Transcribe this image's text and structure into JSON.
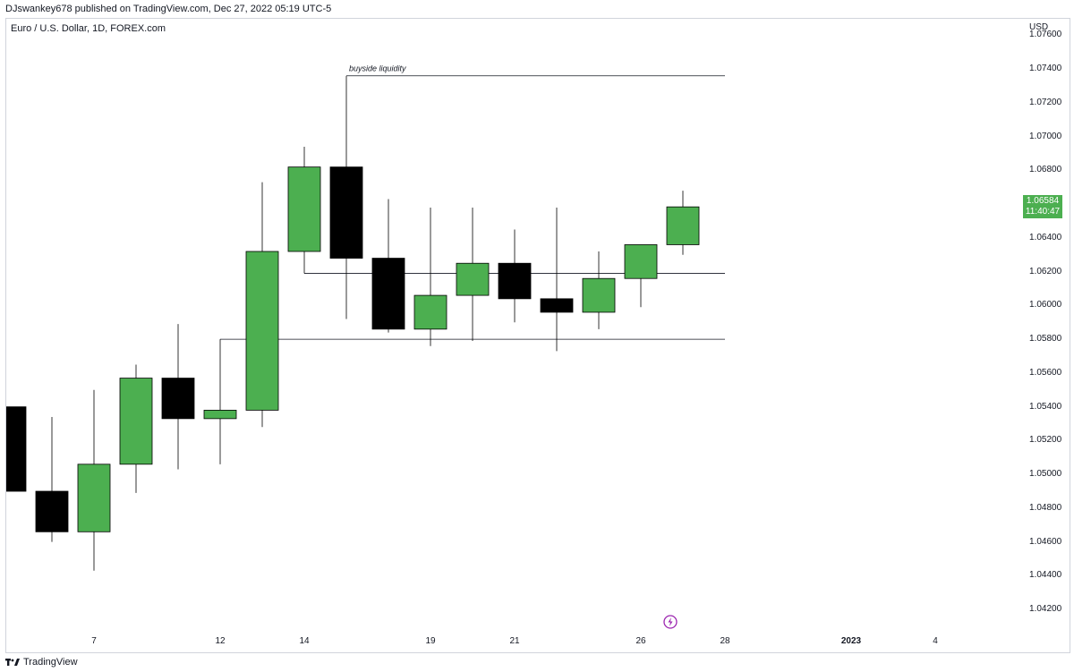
{
  "header": {
    "published_by": "DJswankey678 published on TradingView.com, Dec 27, 2022 05:19 UTC-5"
  },
  "symbol": {
    "description": "Euro / U.S. Dollar, 1D, FOREX.com"
  },
  "price_axis": {
    "currency": "USD",
    "last_price": "1.06584",
    "countdown": "11:40:47",
    "last_price_color": "#4caf50"
  },
  "footer": {
    "brand": "TradingView"
  },
  "colors": {
    "up": "#4caf50",
    "down": "#000000",
    "border": "#000000",
    "line": "#131722"
  },
  "chart_data": {
    "type": "candlestick",
    "title": "Euro / U.S. Dollar, 1D, FOREX.com",
    "ylabel": "USD",
    "ylim": [
      1.041,
      1.0765
    ],
    "yticks": [
      "1.04200",
      "1.04400",
      "1.04600",
      "1.04800",
      "1.05000",
      "1.05200",
      "1.05400",
      "1.05600",
      "1.05800",
      "1.06000",
      "1.06200",
      "1.06400",
      "1.06600",
      "1.06800",
      "1.07000",
      "1.07200",
      "1.07400",
      "1.07600"
    ],
    "xticks": [
      {
        "label": "7",
        "index": 2
      },
      {
        "label": "12",
        "index": 5
      },
      {
        "label": "14",
        "index": 7
      },
      {
        "label": "19",
        "index": 10
      },
      {
        "label": "21",
        "index": 12
      },
      {
        "label": "26",
        "index": 15
      },
      {
        "label": "28",
        "index": 17
      },
      {
        "label": "2023",
        "index": 20,
        "bold": true
      },
      {
        "label": "4",
        "index": 22
      }
    ],
    "candles": [
      {
        "date": "Dec 5",
        "open": 1.054,
        "high": 1.054,
        "low": 1.049,
        "close": 1.049
      },
      {
        "date": "Dec 6",
        "open": 1.049,
        "high": 1.0534,
        "low": 1.046,
        "close": 1.0466
      },
      {
        "date": "Dec 7",
        "open": 1.0466,
        "high": 1.055,
        "low": 1.0443,
        "close": 1.0506
      },
      {
        "date": "Dec 8",
        "open": 1.0506,
        "high": 1.0565,
        "low": 1.0489,
        "close": 1.0557
      },
      {
        "date": "Dec 9",
        "open": 1.0557,
        "high": 1.0589,
        "low": 1.0503,
        "close": 1.0533
      },
      {
        "date": "Dec 12",
        "open": 1.0533,
        "high": 1.058,
        "low": 1.0506,
        "close": 1.0538
      },
      {
        "date": "Dec 13",
        "open": 1.0538,
        "high": 1.0673,
        "low": 1.0528,
        "close": 1.0632
      },
      {
        "date": "Dec 14",
        "open": 1.0632,
        "high": 1.0694,
        "low": 1.0619,
        "close": 1.0682
      },
      {
        "date": "Dec 15",
        "open": 1.0682,
        "high": 1.0736,
        "low": 1.0592,
        "close": 1.0628
      },
      {
        "date": "Dec 16",
        "open": 1.0628,
        "high": 1.0663,
        "low": 1.0584,
        "close": 1.0586
      },
      {
        "date": "Dec 19",
        "open": 1.0586,
        "high": 1.0658,
        "low": 1.0576,
        "close": 1.0606
      },
      {
        "date": "Dec 20",
        "open": 1.0606,
        "high": 1.0658,
        "low": 1.0579,
        "close": 1.0625
      },
      {
        "date": "Dec 21",
        "open": 1.0625,
        "high": 1.0645,
        "low": 1.059,
        "close": 1.0604
      },
      {
        "date": "Dec 22",
        "open": 1.0604,
        "high": 1.0658,
        "low": 1.0573,
        "close": 1.0596
      },
      {
        "date": "Dec 23",
        "open": 1.0596,
        "high": 1.0632,
        "low": 1.0586,
        "close": 1.0616
      },
      {
        "date": "Dec 26",
        "open": 1.0616,
        "high": 1.0636,
        "low": 1.0599,
        "close": 1.0636
      },
      {
        "date": "Dec 27",
        "open": 1.0636,
        "high": 1.0668,
        "low": 1.063,
        "close": 1.06584
      }
    ],
    "annotations": [
      {
        "label": "buyside liquidity",
        "type": "level",
        "price": 1.0736,
        "from_index": 8,
        "to_index": 17
      },
      {
        "label": "",
        "type": "level",
        "price": 1.0619,
        "from_index": 7,
        "to_index": 17
      },
      {
        "label": "",
        "type": "level",
        "price": 1.058,
        "from_index": 5,
        "to_index": 17
      }
    ]
  }
}
